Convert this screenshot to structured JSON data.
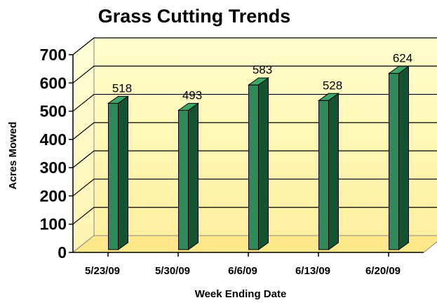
{
  "chart_data": {
    "type": "bar",
    "title": "Grass Cutting Trends",
    "xlabel": "Week Ending Date",
    "ylabel": "Acres Mowed",
    "categories": [
      "5/23/09",
      "5/30/09",
      "6/6/09",
      "6/13/09",
      "6/20/09"
    ],
    "values": [
      518,
      493,
      583,
      528,
      624
    ],
    "data_labels": [
      "518",
      "493",
      "583",
      "528",
      "624"
    ],
    "ylim": [
      0,
      700
    ],
    "yticks": [
      0,
      100,
      200,
      300,
      400,
      500,
      600,
      700
    ],
    "grid": true,
    "legend": "none",
    "style": "3d-column"
  },
  "colors": {
    "bar_front": "#2e8b57",
    "bar_side": "#14532f",
    "bar_top": "#3aa86a",
    "wall_top": "#ffffcc",
    "wall_bottom": "#fff0a0",
    "floor": "#ffe88a"
  }
}
